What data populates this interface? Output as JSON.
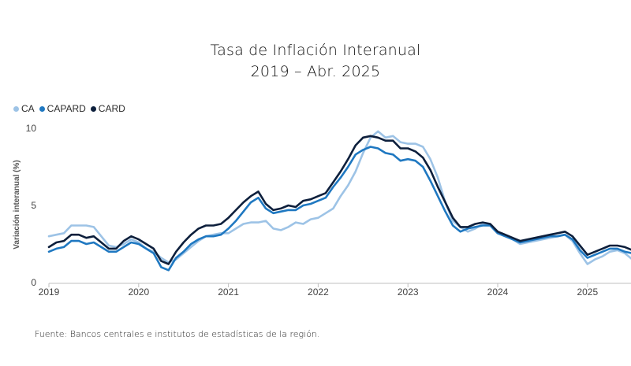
{
  "chart_data": {
    "type": "line",
    "title": "Tasa de Inflación Interanual",
    "subtitle": "2019 – Abr. 2025",
    "ylabel": "Variación interanual (%)",
    "xlabel": "",
    "ylim": [
      0,
      10
    ],
    "yticks": [
      "0",
      "5",
      "10"
    ],
    "xticks": [
      "2019",
      "2020",
      "2021",
      "2022",
      "2023",
      "2024",
      "2025"
    ],
    "x_start": "2019-01",
    "x_end": "2025-04",
    "grid": false,
    "legend_position": "top-left",
    "series": [
      {
        "name": "CA",
        "color": "#9dc3e6",
        "values": [
          3.0,
          3.1,
          3.2,
          3.7,
          3.7,
          3.7,
          3.6,
          3.0,
          2.4,
          2.3,
          2.5,
          2.8,
          2.6,
          2.2,
          2.0,
          1.6,
          1.3,
          1.5,
          1.9,
          2.3,
          2.7,
          3.0,
          3.1,
          3.2,
          3.2,
          3.5,
          3.8,
          3.9,
          3.9,
          4.0,
          3.5,
          3.4,
          3.6,
          3.9,
          3.8,
          4.1,
          4.2,
          4.5,
          4.8,
          5.6,
          6.3,
          7.2,
          8.4,
          9.4,
          9.8,
          9.4,
          9.5,
          9.1,
          9.0,
          9.0,
          8.8,
          8.0,
          6.8,
          5.2,
          4.0,
          3.6,
          3.3,
          3.5,
          3.8,
          3.7,
          3.2,
          3.0,
          2.8,
          2.5,
          2.6,
          2.7,
          2.8,
          2.9,
          3.0,
          3.1,
          2.7,
          1.9,
          1.2,
          1.5,
          1.7,
          2.0,
          2.1,
          1.9,
          1.5
        ]
      },
      {
        "name": "CAPARD",
        "color": "#1f78c1",
        "values": [
          2.0,
          2.2,
          2.3,
          2.7,
          2.7,
          2.5,
          2.6,
          2.3,
          2.0,
          2.0,
          2.3,
          2.6,
          2.5,
          2.2,
          1.9,
          1.0,
          0.8,
          1.6,
          2.0,
          2.5,
          2.8,
          3.0,
          3.0,
          3.1,
          3.5,
          4.0,
          4.6,
          5.2,
          5.5,
          4.8,
          4.5,
          4.6,
          4.7,
          4.7,
          5.0,
          5.1,
          5.3,
          5.5,
          6.2,
          6.8,
          7.5,
          8.3,
          8.6,
          8.8,
          8.7,
          8.4,
          8.3,
          7.9,
          8.0,
          7.9,
          7.5,
          6.6,
          5.6,
          4.6,
          3.7,
          3.3,
          3.5,
          3.6,
          3.7,
          3.7,
          3.2,
          3.0,
          2.8,
          2.6,
          2.7,
          2.8,
          2.9,
          3.0,
          3.0,
          3.1,
          2.8,
          2.1,
          1.6,
          1.8,
          2.0,
          2.2,
          2.2,
          2.0,
          1.9
        ]
      },
      {
        "name": "CARD",
        "color": "#0d1f3c",
        "values": [
          2.3,
          2.6,
          2.7,
          3.1,
          3.1,
          2.9,
          3.0,
          2.6,
          2.2,
          2.2,
          2.7,
          3.0,
          2.8,
          2.5,
          2.2,
          1.4,
          1.2,
          2.0,
          2.6,
          3.1,
          3.5,
          3.7,
          3.7,
          3.8,
          4.2,
          4.7,
          5.2,
          5.6,
          5.9,
          5.1,
          4.7,
          4.8,
          5.0,
          4.9,
          5.3,
          5.4,
          5.6,
          5.8,
          6.5,
          7.2,
          8.0,
          8.9,
          9.4,
          9.5,
          9.4,
          9.2,
          9.2,
          8.7,
          8.7,
          8.5,
          8.1,
          7.3,
          6.2,
          5.2,
          4.2,
          3.6,
          3.6,
          3.8,
          3.9,
          3.8,
          3.3,
          3.1,
          2.9,
          2.7,
          2.8,
          2.9,
          3.0,
          3.1,
          3.2,
          3.3,
          3.0,
          2.4,
          1.8,
          2.0,
          2.2,
          2.4,
          2.4,
          2.3,
          2.1
        ]
      }
    ]
  },
  "footer": {
    "source": "Fuente: Bancos centrales e institutos de estadísticas de la región."
  }
}
